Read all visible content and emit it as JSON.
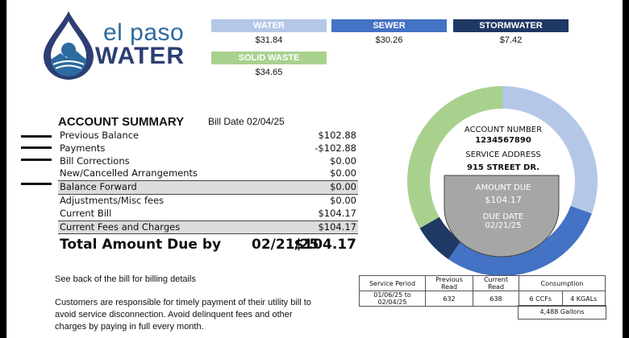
{
  "logo": {
    "line1": "el paso",
    "line2": "WATER"
  },
  "services": [
    {
      "name": "WATER",
      "amount": "$31.84",
      "color": "#b4c7e7"
    },
    {
      "name": "SEWER",
      "amount": "$30.26",
      "color": "#4472c4"
    },
    {
      "name": "STORMWATER",
      "amount": "$7.42",
      "color": "#1f3864"
    },
    {
      "name": "SOLID WASTE",
      "amount": "$34.65",
      "color": "#a9d18e"
    }
  ],
  "summary": {
    "title": "ACCOUNT SUMMARY",
    "bill_date": "Bill Date 02/04/25",
    "rows": [
      {
        "label": "Previous Balance",
        "value": "$102.88"
      },
      {
        "label": "Payments",
        "value": "-$102.88"
      },
      {
        "label": "Bill Corrections",
        "value": "$0.00"
      },
      {
        "label": "New/Cancelled Arrangements",
        "value": "$0.00"
      },
      {
        "label": "Balance Forward",
        "value": "$0.00"
      },
      {
        "label": "Adjustments/Misc fees",
        "value": "$0.00"
      },
      {
        "label": "Current Bill",
        "value": "$104.17"
      },
      {
        "label": "Current Fees and Charges",
        "value": "$104.17"
      }
    ],
    "total_label": "Total Amount Due by",
    "total_date": "02/21/25",
    "total_value": "$104.17"
  },
  "notes": {
    "billing_details": "See back of the bill for billing details",
    "responsibility": "Customers are responsible for timely payment of their utility bill to avoid service disconnection. Avoid delinquent fees and other charges by paying in full every month."
  },
  "account_panel": {
    "account_number_label": "ACCOUNT NUMBER",
    "account_number": "1234567890",
    "service_address_label": "SERVICE ADDRESS",
    "service_address": "915 STREET DR.",
    "amount_due_label": "AMOUNT DUE",
    "amount_due": "$104.17",
    "due_date_label": "DUE DATE",
    "due_date": "02/21/25"
  },
  "usage": {
    "headers": [
      "Service Period",
      "Previous Read",
      "Current Read",
      "Consumption"
    ],
    "row": [
      "01/06/25 to 02/04/25",
      "632",
      "638",
      "6 CCFs",
      "4 KGALs"
    ],
    "gallons": "4,488 Gallons"
  },
  "colors": {
    "water": "#b4c7e7",
    "sewer": "#4472c4",
    "stormwater": "#1f3864",
    "solid_waste": "#a9d18e",
    "logo_dark": "#2c3e73",
    "logo_blue": "#2c6aa0",
    "amount_box": "#a6a6a6"
  }
}
